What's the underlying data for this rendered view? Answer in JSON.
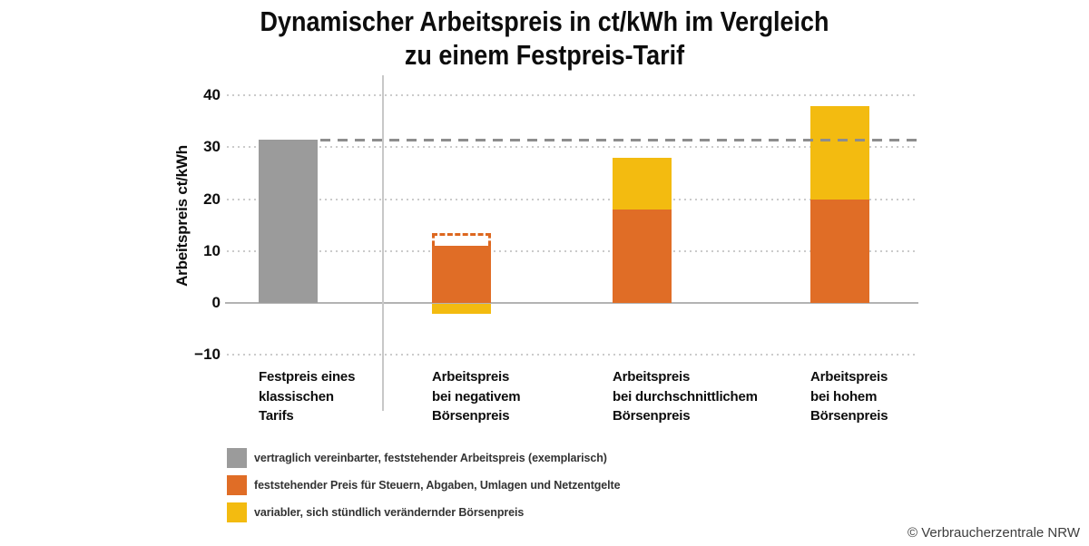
{
  "title": {
    "line1": "Dynamischer Arbeitspreis in ct/kWh im Vergleich",
    "line2": "zu einem Festpreis-Tarif"
  },
  "y_axis": {
    "label": "Arbeitspreis ct/kWh",
    "ticks": [
      "40",
      "30",
      "20",
      "10",
      "0",
      "−10"
    ]
  },
  "categories": [
    {
      "lines": [
        "Festpreis eines",
        "klassischen",
        "Tarifs"
      ]
    },
    {
      "lines": [
        "Arbeitspreis",
        "bei negativem",
        "Börsenpreis"
      ]
    },
    {
      "lines": [
        "Arbeitspreis",
        "bei durchschnittlichem",
        "Börsenpreis"
      ]
    },
    {
      "lines": [
        "Arbeitspreis",
        "bei hohem",
        "Börsenpreis"
      ]
    }
  ],
  "legend": [
    {
      "color": "#9b9b9b",
      "label": "vertraglich vereinbarter, feststehender Arbeitspreis (exemplarisch)"
    },
    {
      "color": "#e06d26",
      "label": "feststehender Preis für Steuern, Abgaben, Umlagen und Netzentgelte"
    },
    {
      "color": "#f3bb10",
      "label": "variabler, sich stündlich verändernder Börsenpreis"
    }
  ],
  "footer": {
    "copyright": "© Verbraucherzentrale NRW"
  },
  "chart_data": {
    "type": "bar",
    "stacked": true,
    "title": "Dynamischer Arbeitspreis in ct/kWh im Vergleich zu einem Festpreis-Tarif",
    "ylabel": "Arbeitspreis ct/kWh",
    "unit": "ct/kWh",
    "ylim": [
      -10,
      43
    ],
    "yticks": [
      40,
      30,
      20,
      10,
      0,
      -10
    ],
    "grid": "dotted horizontal gridlines, solid zero axis",
    "legend_position": "bottom-left",
    "categories": [
      "Festpreis eines klassischen Tarifs",
      "Arbeitspreis bei negativem Börsenpreis",
      "Arbeitspreis bei durchschnittlichem Börsenpreis",
      "Arbeitspreis bei hohem Börsenpreis"
    ],
    "series": [
      {
        "name": "vertraglich vereinbarter, feststehender Arbeitspreis (exemplarisch)",
        "color": "#9b9b9b",
        "values": [
          31.5,
          null,
          null,
          null
        ]
      },
      {
        "name": "feststehender Preis für Steuern, Abgaben, Umlagen und Netzentgelte",
        "color": "#e06d26",
        "values": [
          null,
          11,
          18,
          20
        ]
      },
      {
        "name": "variabler, sich stündlich verändernder Börsenpreis",
        "color": "#f3bb10",
        "values": [
          null,
          -2,
          10,
          18
        ]
      }
    ],
    "totals": [
      31.5,
      11,
      28,
      38
    ],
    "reference_line": {
      "value": 31.5,
      "style": "dashed",
      "color": "#8d8d8d"
    },
    "dashed_outline": {
      "category_index": 1,
      "top_value": 13,
      "bottom_value": 11,
      "color": "#dd671f"
    }
  }
}
